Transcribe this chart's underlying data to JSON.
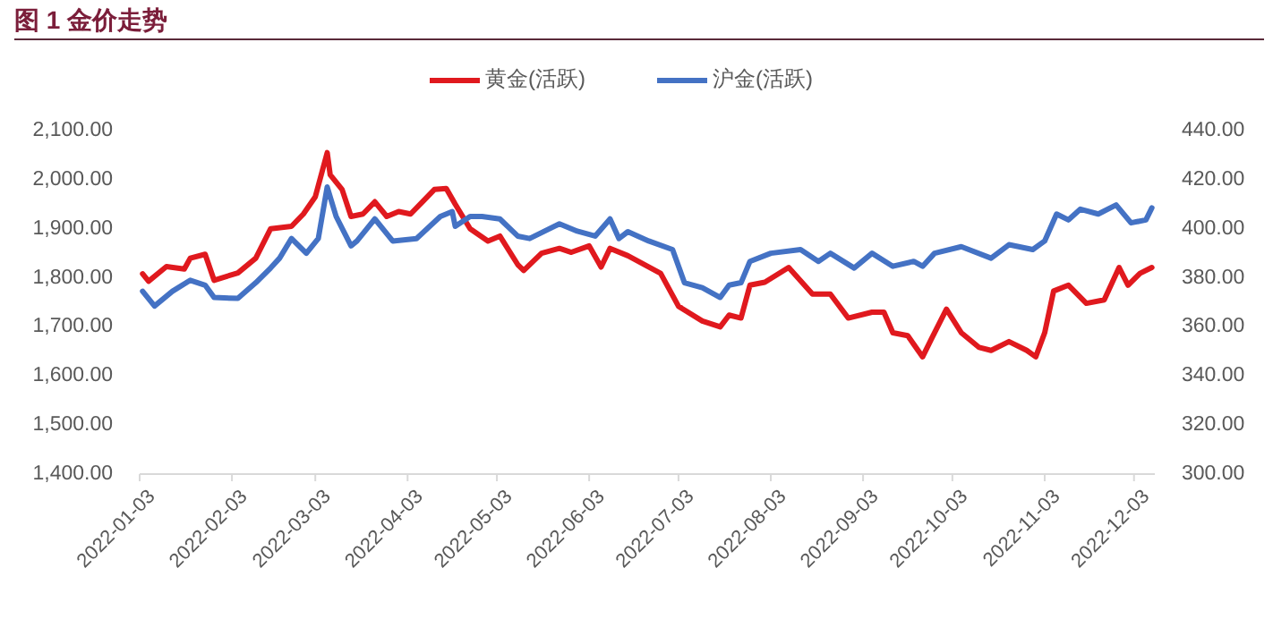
{
  "chart_data": {
    "type": "line",
    "title": "图 1 金价走势",
    "legend": "top",
    "xlim": [
      "2022-01-03",
      "2022-12-10"
    ],
    "xticks": [
      {
        "value": "2022-01-03",
        "label": "2022-01-03"
      },
      {
        "value": "2022-02-03",
        "label": "2022-02-03"
      },
      {
        "value": "2022-03-03",
        "label": "2022-03-03"
      },
      {
        "value": "2022-04-03",
        "label": "2022-04-03"
      },
      {
        "value": "2022-05-03",
        "label": "2022-05-03"
      },
      {
        "value": "2022-06-03",
        "label": "2022-06-03"
      },
      {
        "value": "2022-07-03",
        "label": "2022-07-03"
      },
      {
        "value": "2022-08-03",
        "label": "2022-08-03"
      },
      {
        "value": "2022-09-03",
        "label": "2022-09-03"
      },
      {
        "value": "2022-10-03",
        "label": "2022-10-03"
      },
      {
        "value": "2022-11-03",
        "label": "2022-11-03"
      },
      {
        "value": "2022-12-03",
        "label": "2022-12-03"
      }
    ],
    "ylim": [
      1400,
      2100
    ],
    "yticks": [
      {
        "value": 1400,
        "label": "1,400.00"
      },
      {
        "value": 1500,
        "label": "1,500.00"
      },
      {
        "value": 1600,
        "label": "1,600.00"
      },
      {
        "value": 1700,
        "label": "1,700.00"
      },
      {
        "value": 1800,
        "label": "1,800.00"
      },
      {
        "value": 1900,
        "label": "1,900.00"
      },
      {
        "value": 2000,
        "label": "2,000.00"
      },
      {
        "value": 2100,
        "label": "2,100.00"
      }
    ],
    "y2lim": [
      300,
      440
    ],
    "y2ticks": [
      {
        "value": 300,
        "label": "300.00"
      },
      {
        "value": 320,
        "label": "320.00"
      },
      {
        "value": 340,
        "label": "340.00"
      },
      {
        "value": 360,
        "label": "360.00"
      },
      {
        "value": 380,
        "label": "380.00"
      },
      {
        "value": 400,
        "label": "400.00"
      },
      {
        "value": 420,
        "label": "420.00"
      },
      {
        "value": 440,
        "label": "440.00"
      }
    ],
    "series": [
      {
        "name": "黄金(活跃)",
        "color": "#e0191e",
        "x": [
          "2022-01-04",
          "2022-01-06",
          "2022-01-12",
          "2022-01-18",
          "2022-01-20",
          "2022-01-25",
          "2022-01-28",
          "2022-02-05",
          "2022-02-11",
          "2022-02-16",
          "2022-02-23",
          "2022-02-27",
          "2022-03-03",
          "2022-03-07",
          "2022-03-08",
          "2022-03-12",
          "2022-03-15",
          "2022-03-19",
          "2022-03-23",
          "2022-03-27",
          "2022-03-31",
          "2022-04-04",
          "2022-04-08",
          "2022-04-12",
          "2022-04-16",
          "2022-04-19",
          "2022-04-24",
          "2022-04-30",
          "2022-05-04",
          "2022-05-10",
          "2022-05-12",
          "2022-05-18",
          "2022-05-24",
          "2022-05-28",
          "2022-06-03",
          "2022-06-07",
          "2022-06-10",
          "2022-06-16",
          "2022-06-27",
          "2022-07-03",
          "2022-07-11",
          "2022-07-17",
          "2022-07-20",
          "2022-07-24",
          "2022-07-27",
          "2022-08-01",
          "2022-08-09",
          "2022-08-17",
          "2022-08-23",
          "2022-08-29",
          "2022-09-06",
          "2022-09-10",
          "2022-09-13",
          "2022-09-18",
          "2022-09-23",
          "2022-09-26",
          "2022-10-01",
          "2022-10-06",
          "2022-10-12",
          "2022-10-16",
          "2022-10-22",
          "2022-10-28",
          "2022-10-31",
          "2022-11-03",
          "2022-11-06",
          "2022-11-11",
          "2022-11-17",
          "2022-11-23",
          "2022-11-28",
          "2022-12-01",
          "2022-12-05",
          "2022-12-09"
        ],
        "values": [
          1808,
          1793,
          1823,
          1818,
          1840,
          1848,
          1795,
          1810,
          1840,
          1900,
          1905,
          1930,
          1965,
          2055,
          2010,
          1980,
          1925,
          1930,
          1955,
          1925,
          1935,
          1930,
          1955,
          1980,
          1982,
          1950,
          1900,
          1875,
          1885,
          1827,
          1815,
          1850,
          1860,
          1852,
          1865,
          1822,
          1860,
          1845,
          1809,
          1742,
          1712,
          1700,
          1724,
          1718,
          1785,
          1791,
          1821,
          1767,
          1767,
          1718,
          1730,
          1730,
          1688,
          1682,
          1639,
          1676,
          1736,
          1688,
          1658,
          1652,
          1670,
          1652,
          1639,
          1688,
          1773,
          1785,
          1748,
          1755,
          1821,
          1785,
          1809,
          1821
        ]
      },
      {
        "name": "沪金(活跃)",
        "color": "#4472c4",
        "axis": "y2",
        "x": [
          "2022-01-04",
          "2022-01-08",
          "2022-01-14",
          "2022-01-20",
          "2022-01-25",
          "2022-01-28",
          "2022-02-05",
          "2022-02-11",
          "2022-02-16",
          "2022-02-19",
          "2022-02-23",
          "2022-02-28",
          "2022-03-04",
          "2022-03-07",
          "2022-03-10",
          "2022-03-15",
          "2022-03-17",
          "2022-03-23",
          "2022-03-29",
          "2022-04-06",
          "2022-04-14",
          "2022-04-18",
          "2022-04-19",
          "2022-04-24",
          "2022-04-28",
          "2022-05-04",
          "2022-05-10",
          "2022-05-14",
          "2022-05-24",
          "2022-05-30",
          "2022-06-05",
          "2022-06-10",
          "2022-06-13",
          "2022-06-16",
          "2022-06-23",
          "2022-07-01",
          "2022-07-05",
          "2022-07-11",
          "2022-07-17",
          "2022-07-20",
          "2022-07-24",
          "2022-07-27",
          "2022-08-03",
          "2022-08-13",
          "2022-08-19",
          "2022-08-23",
          "2022-08-31",
          "2022-09-06",
          "2022-09-13",
          "2022-09-20",
          "2022-09-23",
          "2022-09-27",
          "2022-10-06",
          "2022-10-16",
          "2022-10-22",
          "2022-10-30",
          "2022-11-03",
          "2022-11-07",
          "2022-11-11",
          "2022-11-15",
          "2022-11-21",
          "2022-11-27",
          "2022-12-02",
          "2022-12-07",
          "2022-12-09"
        ],
        "values": [
          374.5,
          368.5,
          374.5,
          379,
          377,
          372,
          371.6,
          378,
          384,
          388,
          396,
          390,
          396,
          417,
          405,
          393,
          395,
          404,
          395,
          396,
          405,
          407,
          401,
          405,
          405,
          404,
          397,
          396,
          402,
          399,
          397,
          404,
          396,
          398.8,
          395,
          391.5,
          378,
          376,
          372,
          377,
          378,
          386.7,
          390,
          391.5,
          386.7,
          390,
          384,
          390,
          384.7,
          386.7,
          384.7,
          390,
          392.7,
          388,
          393.5,
          391.5,
          395,
          406,
          403.6,
          408,
          406,
          409.7,
          402.4,
          403.6,
          408.5
        ]
      }
    ]
  }
}
